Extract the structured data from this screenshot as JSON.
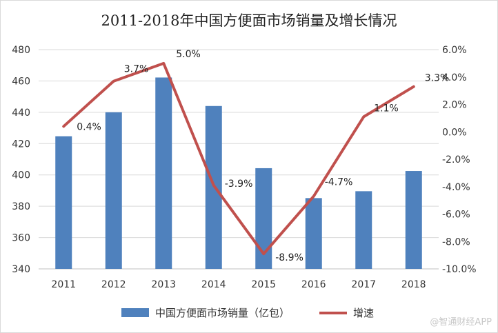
{
  "chart_data": {
    "type": "bar+line",
    "title": "2011-2018年中国方便面市场销量及增长情况",
    "categories": [
      "2011",
      "2012",
      "2013",
      "2014",
      "2015",
      "2016",
      "2017",
      "2018"
    ],
    "series": [
      {
        "name": "中国方便面市场销量（亿包）",
        "type": "bar",
        "axis": "left",
        "color": "#4f81bd",
        "values": [
          424.7,
          440.0,
          462.2,
          444.0,
          404.3,
          385.2,
          389.6,
          402.5
        ]
      },
      {
        "name": "增速",
        "type": "line",
        "axis": "right",
        "color": "#c0504d",
        "values": [
          0.4,
          3.7,
          5.0,
          -3.9,
          -8.9,
          -4.7,
          1.1,
          3.3
        ],
        "labels": [
          "0.4%",
          "3.7%",
          "5.0%",
          "-3.9%",
          "-8.9%",
          "-4.7%",
          "1.1%",
          "3.3%"
        ]
      }
    ],
    "y_left": {
      "min": 340,
      "max": 480,
      "step": 20,
      "ticks": [
        "340",
        "360",
        "380",
        "400",
        "420",
        "440",
        "460",
        "480"
      ]
    },
    "y_right": {
      "min": -10,
      "max": 6,
      "step": 2,
      "ticks": [
        "-10.0%",
        "-8.0%",
        "-6.0%",
        "-4.0%",
        "-2.0%",
        "0.0%",
        "2.0%",
        "4.0%",
        "6.0%"
      ]
    },
    "grid": true,
    "legend_position": "bottom"
  },
  "watermark": "@智通财经APP"
}
